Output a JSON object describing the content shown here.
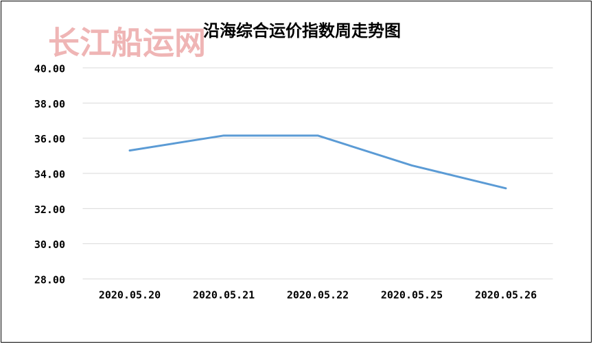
{
  "chart_data": {
    "type": "line",
    "title": "沿海综合运价指数周走势图",
    "watermark": "长江船运网",
    "categories": [
      "2020.05.20",
      "2020.05.21",
      "2020.05.22",
      "2020.05.25",
      "2020.05.26"
    ],
    "values": [
      35.3,
      36.15,
      36.15,
      34.45,
      33.15
    ],
    "color": "#5b9bd5",
    "ylim": [
      28,
      40
    ],
    "yticks": [
      {
        "value": 28,
        "label": "28.00"
      },
      {
        "value": 30,
        "label": "30.00"
      },
      {
        "value": 32,
        "label": "32.00"
      },
      {
        "value": 34,
        "label": "34.00"
      },
      {
        "value": 36,
        "label": "36.00"
      },
      {
        "value": 38,
        "label": "38.00"
      },
      {
        "value": 40,
        "label": "40.00"
      }
    ],
    "grid": true
  }
}
